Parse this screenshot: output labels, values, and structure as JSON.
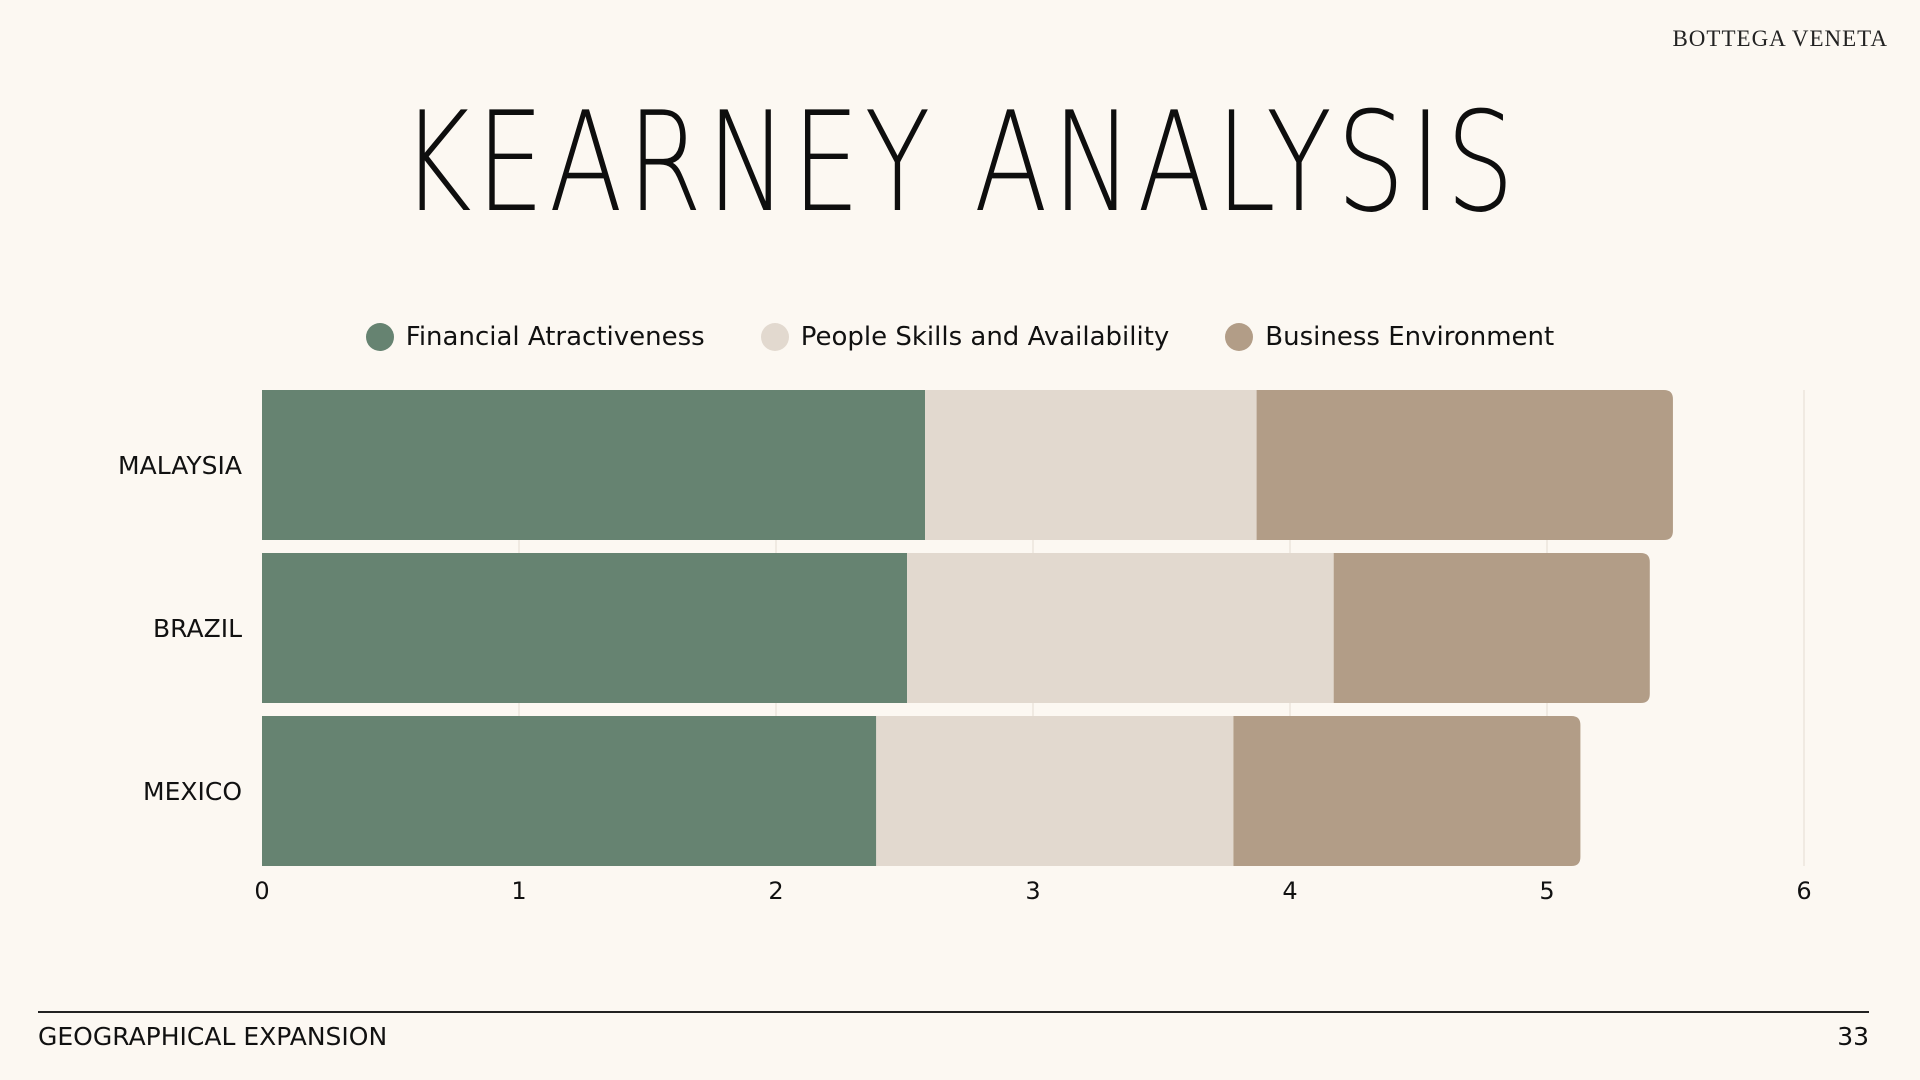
{
  "brand": "BOTTEGA VENETA",
  "title": "KEARNEY ANALYSIS",
  "footer": {
    "section": "GEOGRAPHICAL EXPANSION",
    "page_number": "33"
  },
  "chart_data": {
    "type": "bar",
    "orientation": "horizontal",
    "stacked": true,
    "categories": [
      "MALAYSIA",
      "BRAZIL",
      "MEXICO"
    ],
    "series": [
      {
        "name": "Financial Atractiveness",
        "color": "#668371",
        "values": [
          2.58,
          2.51,
          2.39
        ]
      },
      {
        "name": "People Skills and Availability",
        "color": "#E2D9CF",
        "values": [
          1.29,
          1.66,
          1.39
        ]
      },
      {
        "name": "Business Environment",
        "color": "#B29D87",
        "values": [
          1.62,
          1.23,
          1.35
        ]
      }
    ],
    "xlim": [
      0,
      6
    ],
    "xticks": [
      "0",
      "1",
      "2",
      "3",
      "4",
      "5",
      "6"
    ],
    "grid": true,
    "legend_position": "top"
  }
}
